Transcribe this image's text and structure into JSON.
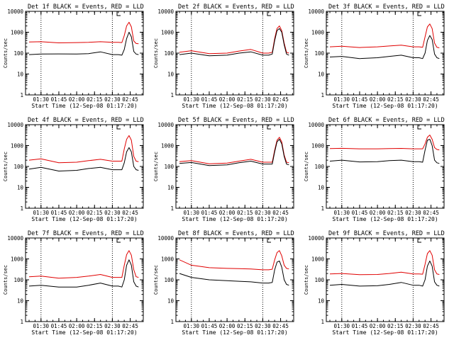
{
  "colors": {
    "events": "#000000",
    "lld": "#e00000",
    "axis": "#000000",
    "background": "#ffffff"
  },
  "chart_data": [
    {
      "type": "line",
      "scale": "log",
      "title": "Det 1f BLACK = Events, RED = LLD",
      "xlabel": "Start Time (12-Sep-08 01:17:20)",
      "ylabel": "Counts/sec",
      "xlim": [
        "01:17",
        "02:56"
      ],
      "ylim": [
        1,
        10000
      ],
      "x_ticks": [
        "01:30",
        "01:45",
        "02:00",
        "02:15",
        "02:30",
        "02:45"
      ],
      "y_ticks": [
        "1",
        "10",
        "100",
        "1000",
        "10000"
      ],
      "dotted_lines": [
        "01:30",
        "02:30"
      ],
      "series": [
        {
          "name": "Events",
          "color": "black",
          "x": [
            "01:20",
            "01:30",
            "01:45",
            "02:00",
            "02:10",
            "02:20",
            "02:30",
            "02:35",
            "02:38",
            "02:40",
            "02:42",
            "02:44",
            "02:46",
            "02:48",
            "02:50",
            "02:52"
          ],
          "values": [
            85,
            90,
            92,
            90,
            95,
            115,
            85,
            85,
            80,
            150,
            500,
            1000,
            600,
            120,
            90,
            85
          ]
        },
        {
          "name": "LLD",
          "color": "red",
          "x": [
            "01:20",
            "01:30",
            "01:45",
            "02:00",
            "02:10",
            "02:20",
            "02:30",
            "02:35",
            "02:38",
            "02:40",
            "02:42",
            "02:44",
            "02:46",
            "02:48",
            "02:50",
            "02:52"
          ],
          "values": [
            340,
            350,
            310,
            320,
            330,
            350,
            330,
            330,
            320,
            700,
            2000,
            3000,
            1800,
            380,
            290,
            280
          ]
        }
      ]
    },
    {
      "type": "line",
      "scale": "log",
      "title": "Det 2f BLACK = Events, RED = LLD",
      "xlabel": "Start Time (12-Sep-08 01:17:20)",
      "ylabel": "Counts/sec",
      "xlim": [
        "01:17",
        "02:56"
      ],
      "ylim": [
        1,
        10000
      ],
      "x_ticks": [
        "01:30",
        "01:45",
        "02:00",
        "02:15",
        "02:30",
        "02:45"
      ],
      "y_ticks": [
        "1",
        "10",
        "100",
        "1000",
        "10000"
      ],
      "dotted_lines": [
        "01:30",
        "02:30"
      ],
      "series": [
        {
          "name": "Events",
          "color": "black",
          "x": [
            "01:20",
            "01:30",
            "01:45",
            "02:00",
            "02:10",
            "02:20",
            "02:30",
            "02:35",
            "02:38",
            "02:40",
            "02:42",
            "02:44",
            "02:46",
            "02:48",
            "02:50",
            "02:52"
          ],
          "values": [
            85,
            100,
            75,
            80,
            100,
            115,
            80,
            80,
            90,
            400,
            1200,
            1500,
            1000,
            250,
            90,
            80
          ]
        },
        {
          "name": "LLD",
          "color": "red",
          "x": [
            "01:20",
            "01:30",
            "01:45",
            "02:00",
            "02:10",
            "02:20",
            "02:30",
            "02:35",
            "02:38",
            "02:40",
            "02:42",
            "02:44",
            "02:46",
            "02:48",
            "02:50",
            "02:52"
          ],
          "values": [
            110,
            130,
            95,
            100,
            125,
            150,
            100,
            100,
            110,
            500,
            1500,
            2000,
            1200,
            300,
            110,
            100
          ]
        }
      ]
    },
    {
      "type": "line",
      "scale": "log",
      "title": "Det 3f BLACK = Events, RED = LLD",
      "xlabel": "Start Time (12-Sep-08 01:17:20)",
      "ylabel": "Counts/sec",
      "xlim": [
        "01:17",
        "02:56"
      ],
      "ylim": [
        1,
        10000
      ],
      "x_ticks": [
        "01:30",
        "01:45",
        "02:00",
        "02:15",
        "02:30",
        "02:45"
      ],
      "y_ticks": [
        "1",
        "10",
        "100",
        "1000",
        "10000"
      ],
      "dotted_lines": [
        "01:30",
        "02:30"
      ],
      "series": [
        {
          "name": "Events",
          "color": "black",
          "x": [
            "01:20",
            "01:30",
            "01:45",
            "02:00",
            "02:10",
            "02:20",
            "02:30",
            "02:35",
            "02:38",
            "02:40",
            "02:42",
            "02:44",
            "02:46",
            "02:48",
            "02:50",
            "02:52"
          ],
          "values": [
            65,
            70,
            55,
            60,
            70,
            80,
            60,
            60,
            55,
            100,
            400,
            700,
            450,
            90,
            60,
            55
          ]
        },
        {
          "name": "LLD",
          "color": "red",
          "x": [
            "01:20",
            "01:30",
            "01:45",
            "02:00",
            "02:10",
            "02:20",
            "02:30",
            "02:35",
            "02:38",
            "02:40",
            "02:42",
            "02:44",
            "02:46",
            "02:48",
            "02:50",
            "02:52"
          ],
          "values": [
            200,
            215,
            185,
            200,
            220,
            240,
            200,
            200,
            190,
            600,
            1800,
            2500,
            1500,
            300,
            190,
            180
          ]
        }
      ]
    },
    {
      "type": "line",
      "scale": "log",
      "title": "Det 4f BLACK = Events, RED = LLD",
      "xlabel": "Start Time (12-Sep-08 01:17:20)",
      "ylabel": "Counts/sec",
      "xlim": [
        "01:17",
        "02:56"
      ],
      "ylim": [
        1,
        10000
      ],
      "x_ticks": [
        "01:30",
        "01:45",
        "02:00",
        "02:15",
        "02:30",
        "02:45"
      ],
      "y_ticks": [
        "1",
        "10",
        "100",
        "1000",
        "10000"
      ],
      "dotted_lines": [
        "01:30",
        "02:30"
      ],
      "series": [
        {
          "name": "Events",
          "color": "black",
          "x": [
            "01:20",
            "01:30",
            "01:45",
            "02:00",
            "02:10",
            "02:20",
            "02:30",
            "02:35",
            "02:38",
            "02:40",
            "02:42",
            "02:44",
            "02:46",
            "02:48",
            "02:50",
            "02:52"
          ],
          "values": [
            75,
            90,
            60,
            65,
            80,
            90,
            70,
            70,
            70,
            150,
            500,
            800,
            500,
            100,
            70,
            65
          ]
        },
        {
          "name": "LLD",
          "color": "red",
          "x": [
            "01:20",
            "01:30",
            "01:45",
            "02:00",
            "02:10",
            "02:20",
            "02:30",
            "02:35",
            "02:38",
            "02:40",
            "02:42",
            "02:44",
            "02:46",
            "02:48",
            "02:50",
            "02:52"
          ],
          "values": [
            200,
            230,
            150,
            160,
            190,
            220,
            180,
            180,
            180,
            700,
            2000,
            3000,
            1800,
            300,
            180,
            170
          ]
        }
      ]
    },
    {
      "type": "line",
      "scale": "log",
      "title": "Det 5f BLACK = Events, RED = LLD",
      "xlabel": "Start Time (12-Sep-08 01:17:20)",
      "ylabel": "Counts/sec",
      "xlim": [
        "01:17",
        "02:56"
      ],
      "ylim": [
        1,
        10000
      ],
      "x_ticks": [
        "01:30",
        "01:45",
        "02:00",
        "02:15",
        "02:30",
        "02:45"
      ],
      "y_ticks": [
        "1",
        "10",
        "100",
        "1000",
        "10000"
      ],
      "dotted_lines": [
        "01:30",
        "02:30"
      ],
      "series": [
        {
          "name": "Events",
          "color": "black",
          "x": [
            "01:20",
            "01:30",
            "01:45",
            "02:00",
            "02:10",
            "02:20",
            "02:30",
            "02:35",
            "02:38",
            "02:40",
            "02:42",
            "02:44",
            "02:46",
            "02:48",
            "02:50",
            "02:52"
          ],
          "values": [
            140,
            155,
            110,
            120,
            150,
            180,
            130,
            130,
            130,
            500,
            1500,
            2000,
            1200,
            300,
            130,
            120
          ]
        },
        {
          "name": "LLD",
          "color": "red",
          "x": [
            "01:20",
            "01:30",
            "01:45",
            "02:00",
            "02:10",
            "02:20",
            "02:30",
            "02:35",
            "02:38",
            "02:40",
            "02:42",
            "02:44",
            "02:46",
            "02:48",
            "02:50",
            "02:52"
          ],
          "values": [
            170,
            190,
            135,
            145,
            180,
            220,
            160,
            160,
            160,
            600,
            1800,
            2500,
            1500,
            350,
            160,
            150
          ]
        }
      ]
    },
    {
      "type": "line",
      "scale": "log",
      "title": "Det 6f BLACK = Events, RED = LLD",
      "xlabel": "Start Time (12-Sep-08 01:17:20)",
      "ylabel": "Counts/sec",
      "xlim": [
        "01:17",
        "02:56"
      ],
      "ylim": [
        1,
        10000
      ],
      "x_ticks": [
        "01:30",
        "01:45",
        "02:00",
        "02:15",
        "02:30",
        "02:45"
      ],
      "y_ticks": [
        "1",
        "10",
        "100",
        "1000",
        "10000"
      ],
      "dotted_lines": [
        "01:30",
        "02:30"
      ],
      "series": [
        {
          "name": "Events",
          "color": "black",
          "x": [
            "01:20",
            "01:30",
            "01:45",
            "02:00",
            "02:10",
            "02:20",
            "02:30",
            "02:35",
            "02:38",
            "02:40",
            "02:42",
            "02:44",
            "02:46",
            "02:48",
            "02:50",
            "02:52"
          ],
          "values": [
            180,
            200,
            165,
            170,
            190,
            200,
            170,
            170,
            160,
            600,
            1800,
            2000,
            1000,
            200,
            150,
            140
          ]
        },
        {
          "name": "LLD",
          "color": "red",
          "x": [
            "01:20",
            "01:30",
            "01:45",
            "02:00",
            "02:10",
            "02:20",
            "02:30",
            "02:35",
            "02:38",
            "02:40",
            "02:42",
            "02:44",
            "02:46",
            "02:48",
            "02:50",
            "02:52"
          ],
          "values": [
            720,
            740,
            700,
            700,
            720,
            730,
            700,
            700,
            700,
            1200,
            2500,
            3200,
            2000,
            800,
            650,
            620
          ]
        }
      ]
    },
    {
      "type": "line",
      "scale": "log",
      "title": "Det 7f BLACK = Events, RED = LLD",
      "xlabel": "Start Time (12-Sep-08 01:17:20)",
      "ylabel": "Counts/sec",
      "xlim": [
        "01:17",
        "02:56"
      ],
      "ylim": [
        1,
        10000
      ],
      "x_ticks": [
        "01:30",
        "01:45",
        "02:00",
        "02:15",
        "02:30",
        "02:45"
      ],
      "y_ticks": [
        "1",
        "10",
        "100",
        "1000",
        "10000"
      ],
      "dotted_lines": [
        "01:30",
        "02:30"
      ],
      "series": [
        {
          "name": "Events",
          "color": "black",
          "x": [
            "01:20",
            "01:30",
            "01:45",
            "02:00",
            "02:10",
            "02:20",
            "02:30",
            "02:35",
            "02:38",
            "02:40",
            "02:42",
            "02:44",
            "02:46",
            "02:48",
            "02:50",
            "02:52"
          ],
          "values": [
            50,
            55,
            45,
            45,
            55,
            70,
            50,
            50,
            45,
            100,
            500,
            900,
            500,
            80,
            50,
            45
          ]
        },
        {
          "name": "LLD",
          "color": "red",
          "x": [
            "01:20",
            "01:30",
            "01:45",
            "02:00",
            "02:10",
            "02:20",
            "02:30",
            "02:35",
            "02:38",
            "02:40",
            "02:42",
            "02:44",
            "02:46",
            "02:48",
            "02:50",
            "02:52"
          ],
          "values": [
            140,
            150,
            120,
            130,
            150,
            180,
            130,
            130,
            130,
            500,
            1600,
            2500,
            1500,
            300,
            140,
            130
          ]
        }
      ]
    },
    {
      "type": "line",
      "scale": "log",
      "title": "Det 8f BLACK = Events, RED = LLD",
      "xlabel": "Start Time (12-Sep-08 01:17:20)",
      "ylabel": "Counts/sec",
      "xlim": [
        "01:17",
        "02:56"
      ],
      "ylim": [
        1,
        10000
      ],
      "x_ticks": [
        "01:30",
        "01:45",
        "02:00",
        "02:15",
        "02:30",
        "02:45"
      ],
      "y_ticks": [
        "1",
        "10",
        "100",
        "1000",
        "10000"
      ],
      "dotted_lines": [
        "01:30",
        "02:30"
      ],
      "series": [
        {
          "name": "Events",
          "color": "black",
          "x": [
            "01:20",
            "01:30",
            "01:45",
            "02:00",
            "02:10",
            "02:20",
            "02:30",
            "02:35",
            "02:38",
            "02:40",
            "02:42",
            "02:44",
            "02:46",
            "02:48",
            "02:50",
            "02:52"
          ],
          "values": [
            200,
            130,
            100,
            90,
            85,
            80,
            70,
            70,
            75,
            300,
            700,
            800,
            400,
            100,
            60,
            55
          ]
        },
        {
          "name": "LLD",
          "color": "red",
          "x": [
            "01:20",
            "01:30",
            "01:45",
            "02:00",
            "02:10",
            "02:20",
            "02:30",
            "02:35",
            "02:38",
            "02:40",
            "02:42",
            "02:44",
            "02:46",
            "02:48",
            "02:50",
            "02:52"
          ],
          "values": [
            900,
            500,
            380,
            350,
            340,
            330,
            300,
            300,
            320,
            900,
            2000,
            2500,
            1400,
            500,
            350,
            330
          ]
        }
      ]
    },
    {
      "type": "line",
      "scale": "log",
      "title": "Det 9f BLACK = Events, RED = LLD",
      "xlabel": "Start Time (12-Sep-08 01:17:20)",
      "ylabel": "Counts/sec",
      "xlim": [
        "01:17",
        "02:56"
      ],
      "ylim": [
        1,
        10000
      ],
      "x_ticks": [
        "01:30",
        "01:45",
        "02:00",
        "02:15",
        "02:30",
        "02:45"
      ],
      "y_ticks": [
        "1",
        "10",
        "100",
        "1000",
        "10000"
      ],
      "dotted_lines": [
        "01:30",
        "02:30"
      ],
      "series": [
        {
          "name": "Events",
          "color": "black",
          "x": [
            "01:20",
            "01:30",
            "01:45",
            "02:00",
            "02:10",
            "02:20",
            "02:30",
            "02:35",
            "02:38",
            "02:40",
            "02:42",
            "02:44",
            "02:46",
            "02:48",
            "02:50",
            "02:52"
          ],
          "values": [
            55,
            60,
            50,
            52,
            60,
            75,
            55,
            55,
            50,
            100,
            450,
            800,
            450,
            80,
            55,
            50
          ]
        },
        {
          "name": "LLD",
          "color": "red",
          "x": [
            "01:20",
            "01:30",
            "01:45",
            "02:00",
            "02:10",
            "02:20",
            "02:30",
            "02:35",
            "02:38",
            "02:40",
            "02:42",
            "02:44",
            "02:46",
            "02:48",
            "02:50",
            "02:52"
          ],
          "values": [
            190,
            200,
            175,
            180,
            200,
            230,
            190,
            190,
            185,
            550,
            1800,
            2500,
            1500,
            300,
            190,
            180
          ]
        }
      ]
    }
  ]
}
